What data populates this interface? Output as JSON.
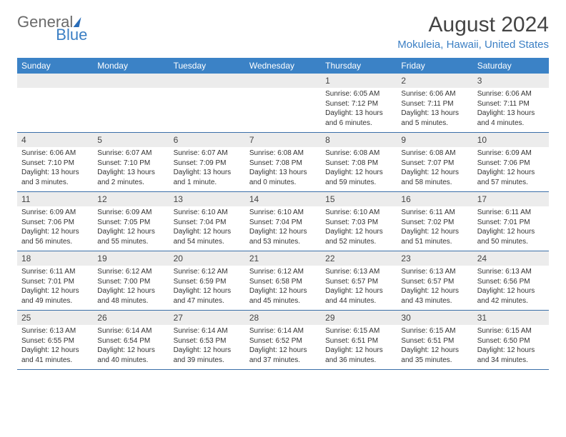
{
  "logo": {
    "general": "General",
    "blue": "Blue"
  },
  "title": "August 2024",
  "location": "Mokuleia, Hawaii, United States",
  "header_bg": "#3b82c6",
  "day_labels": [
    "Sunday",
    "Monday",
    "Tuesday",
    "Wednesday",
    "Thursday",
    "Friday",
    "Saturday"
  ],
  "weeks": [
    {
      "dates": [
        "",
        "",
        "",
        "",
        "1",
        "2",
        "3"
      ],
      "cells": [
        null,
        null,
        null,
        null,
        {
          "sunrise": "Sunrise: 6:05 AM",
          "sunset": "Sunset: 7:12 PM",
          "daylight": "Daylight: 13 hours and 6 minutes."
        },
        {
          "sunrise": "Sunrise: 6:06 AM",
          "sunset": "Sunset: 7:11 PM",
          "daylight": "Daylight: 13 hours and 5 minutes."
        },
        {
          "sunrise": "Sunrise: 6:06 AM",
          "sunset": "Sunset: 7:11 PM",
          "daylight": "Daylight: 13 hours and 4 minutes."
        }
      ]
    },
    {
      "dates": [
        "4",
        "5",
        "6",
        "7",
        "8",
        "9",
        "10"
      ],
      "cells": [
        {
          "sunrise": "Sunrise: 6:06 AM",
          "sunset": "Sunset: 7:10 PM",
          "daylight": "Daylight: 13 hours and 3 minutes."
        },
        {
          "sunrise": "Sunrise: 6:07 AM",
          "sunset": "Sunset: 7:10 PM",
          "daylight": "Daylight: 13 hours and 2 minutes."
        },
        {
          "sunrise": "Sunrise: 6:07 AM",
          "sunset": "Sunset: 7:09 PM",
          "daylight": "Daylight: 13 hours and 1 minute."
        },
        {
          "sunrise": "Sunrise: 6:08 AM",
          "sunset": "Sunset: 7:08 PM",
          "daylight": "Daylight: 13 hours and 0 minutes."
        },
        {
          "sunrise": "Sunrise: 6:08 AM",
          "sunset": "Sunset: 7:08 PM",
          "daylight": "Daylight: 12 hours and 59 minutes."
        },
        {
          "sunrise": "Sunrise: 6:08 AM",
          "sunset": "Sunset: 7:07 PM",
          "daylight": "Daylight: 12 hours and 58 minutes."
        },
        {
          "sunrise": "Sunrise: 6:09 AM",
          "sunset": "Sunset: 7:06 PM",
          "daylight": "Daylight: 12 hours and 57 minutes."
        }
      ]
    },
    {
      "dates": [
        "11",
        "12",
        "13",
        "14",
        "15",
        "16",
        "17"
      ],
      "cells": [
        {
          "sunrise": "Sunrise: 6:09 AM",
          "sunset": "Sunset: 7:06 PM",
          "daylight": "Daylight: 12 hours and 56 minutes."
        },
        {
          "sunrise": "Sunrise: 6:09 AM",
          "sunset": "Sunset: 7:05 PM",
          "daylight": "Daylight: 12 hours and 55 minutes."
        },
        {
          "sunrise": "Sunrise: 6:10 AM",
          "sunset": "Sunset: 7:04 PM",
          "daylight": "Daylight: 12 hours and 54 minutes."
        },
        {
          "sunrise": "Sunrise: 6:10 AM",
          "sunset": "Sunset: 7:04 PM",
          "daylight": "Daylight: 12 hours and 53 minutes."
        },
        {
          "sunrise": "Sunrise: 6:10 AM",
          "sunset": "Sunset: 7:03 PM",
          "daylight": "Daylight: 12 hours and 52 minutes."
        },
        {
          "sunrise": "Sunrise: 6:11 AM",
          "sunset": "Sunset: 7:02 PM",
          "daylight": "Daylight: 12 hours and 51 minutes."
        },
        {
          "sunrise": "Sunrise: 6:11 AM",
          "sunset": "Sunset: 7:01 PM",
          "daylight": "Daylight: 12 hours and 50 minutes."
        }
      ]
    },
    {
      "dates": [
        "18",
        "19",
        "20",
        "21",
        "22",
        "23",
        "24"
      ],
      "cells": [
        {
          "sunrise": "Sunrise: 6:11 AM",
          "sunset": "Sunset: 7:01 PM",
          "daylight": "Daylight: 12 hours and 49 minutes."
        },
        {
          "sunrise": "Sunrise: 6:12 AM",
          "sunset": "Sunset: 7:00 PM",
          "daylight": "Daylight: 12 hours and 48 minutes."
        },
        {
          "sunrise": "Sunrise: 6:12 AM",
          "sunset": "Sunset: 6:59 PM",
          "daylight": "Daylight: 12 hours and 47 minutes."
        },
        {
          "sunrise": "Sunrise: 6:12 AM",
          "sunset": "Sunset: 6:58 PM",
          "daylight": "Daylight: 12 hours and 45 minutes."
        },
        {
          "sunrise": "Sunrise: 6:13 AM",
          "sunset": "Sunset: 6:57 PM",
          "daylight": "Daylight: 12 hours and 44 minutes."
        },
        {
          "sunrise": "Sunrise: 6:13 AM",
          "sunset": "Sunset: 6:57 PM",
          "daylight": "Daylight: 12 hours and 43 minutes."
        },
        {
          "sunrise": "Sunrise: 6:13 AM",
          "sunset": "Sunset: 6:56 PM",
          "daylight": "Daylight: 12 hours and 42 minutes."
        }
      ]
    },
    {
      "dates": [
        "25",
        "26",
        "27",
        "28",
        "29",
        "30",
        "31"
      ],
      "cells": [
        {
          "sunrise": "Sunrise: 6:13 AM",
          "sunset": "Sunset: 6:55 PM",
          "daylight": "Daylight: 12 hours and 41 minutes."
        },
        {
          "sunrise": "Sunrise: 6:14 AM",
          "sunset": "Sunset: 6:54 PM",
          "daylight": "Daylight: 12 hours and 40 minutes."
        },
        {
          "sunrise": "Sunrise: 6:14 AM",
          "sunset": "Sunset: 6:53 PM",
          "daylight": "Daylight: 12 hours and 39 minutes."
        },
        {
          "sunrise": "Sunrise: 6:14 AM",
          "sunset": "Sunset: 6:52 PM",
          "daylight": "Daylight: 12 hours and 37 minutes."
        },
        {
          "sunrise": "Sunrise: 6:15 AM",
          "sunset": "Sunset: 6:51 PM",
          "daylight": "Daylight: 12 hours and 36 minutes."
        },
        {
          "sunrise": "Sunrise: 6:15 AM",
          "sunset": "Sunset: 6:51 PM",
          "daylight": "Daylight: 12 hours and 35 minutes."
        },
        {
          "sunrise": "Sunrise: 6:15 AM",
          "sunset": "Sunset: 6:50 PM",
          "daylight": "Daylight: 12 hours and 34 minutes."
        }
      ]
    }
  ]
}
